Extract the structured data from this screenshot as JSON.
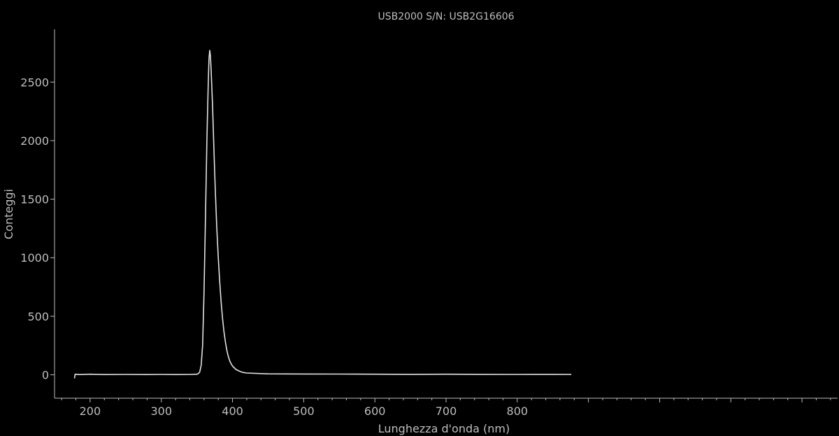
{
  "chart_data": {
    "type": "line",
    "title": "USB2000 S/N: USB2G16606",
    "xlabel": "Lunghezza d'onda (nm)",
    "ylabel": "Conteggi",
    "xlim": [
      150,
      1250
    ],
    "ylim": [
      -200,
      2950
    ],
    "x_ticks": [
      200,
      300,
      400,
      500,
      600,
      700,
      800
    ],
    "y_ticks": [
      0,
      500,
      1000,
      1500,
      2000,
      2500
    ],
    "grid": false,
    "colors": {
      "background": "#000000",
      "line": "#e2e2e2",
      "axis": "#bdbdbd"
    },
    "series": [
      {
        "values": [
          [
            178,
            -30
          ],
          [
            179,
            5
          ],
          [
            185,
            2
          ],
          [
            200,
            5
          ],
          [
            220,
            2
          ],
          [
            250,
            3
          ],
          [
            280,
            2
          ],
          [
            300,
            3
          ],
          [
            320,
            2
          ],
          [
            340,
            3
          ],
          [
            350,
            5
          ],
          [
            352,
            10
          ],
          [
            354,
            25
          ],
          [
            356,
            80
          ],
          [
            358,
            250
          ],
          [
            360,
            700
          ],
          [
            362,
            1350
          ],
          [
            364,
            2000
          ],
          [
            366,
            2500
          ],
          [
            367,
            2700
          ],
          [
            368,
            2770
          ],
          [
            369,
            2720
          ],
          [
            370,
            2600
          ],
          [
            372,
            2300
          ],
          [
            374,
            1900
          ],
          [
            376,
            1550
          ],
          [
            378,
            1250
          ],
          [
            380,
            1000
          ],
          [
            382,
            800
          ],
          [
            384,
            620
          ],
          [
            386,
            480
          ],
          [
            388,
            370
          ],
          [
            390,
            280
          ],
          [
            392,
            210
          ],
          [
            394,
            160
          ],
          [
            396,
            120
          ],
          [
            398,
            95
          ],
          [
            400,
            75
          ],
          [
            405,
            45
          ],
          [
            410,
            30
          ],
          [
            415,
            20
          ],
          [
            420,
            15
          ],
          [
            450,
            8
          ],
          [
            500,
            7
          ],
          [
            550,
            6
          ],
          [
            600,
            5
          ],
          [
            650,
            4
          ],
          [
            700,
            5
          ],
          [
            750,
            4
          ],
          [
            800,
            3
          ],
          [
            850,
            4
          ],
          [
            876,
            3
          ]
        ]
      }
    ]
  }
}
